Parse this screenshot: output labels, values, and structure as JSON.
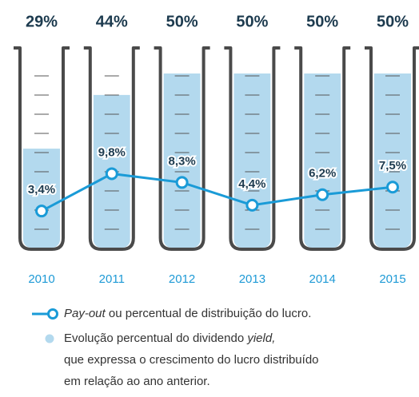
{
  "chart_data": {
    "type": "tube-line",
    "categories": [
      "2010",
      "2011",
      "2012",
      "2013",
      "2014",
      "2015"
    ],
    "series": [
      {
        "color": "#b3d9ee",
        "values": [
          29,
          44,
          50,
          50,
          50,
          50
        ],
        "value_labels": [
          "29%",
          "44%",
          "50%",
          "50%",
          "50%",
          "50%"
        ]
      },
      {
        "color": "#1a9bd7",
        "axis": "y2",
        "values": [
          3.4,
          9.8,
          8.3,
          4.4,
          6.2,
          7.5
        ],
        "value_labels": [
          "3,4%",
          "9,8%",
          "8,3%",
          "4,4%",
          "6,2%",
          "7,5%"
        ]
      }
    ],
    "ylim": [
      0,
      50
    ],
    "y2lim": [
      0,
      10
    ],
    "legend": [
      {
        "lines": [
          [
            {
              "text": "Pay-out",
              "italic": true
            },
            {
              "text": " ou percentual de distribuição do lucro."
            }
          ]
        ]
      },
      {
        "lines": [
          [
            {
              "text": "Evolução percentual do dividendo "
            },
            {
              "text": "yield,",
              "italic": true
            }
          ],
          [
            {
              "text": "que expressa o crescimento do lucro distribuído"
            }
          ],
          [
            {
              "text": "em relação ao ano anterior."
            }
          ]
        ]
      }
    ]
  }
}
